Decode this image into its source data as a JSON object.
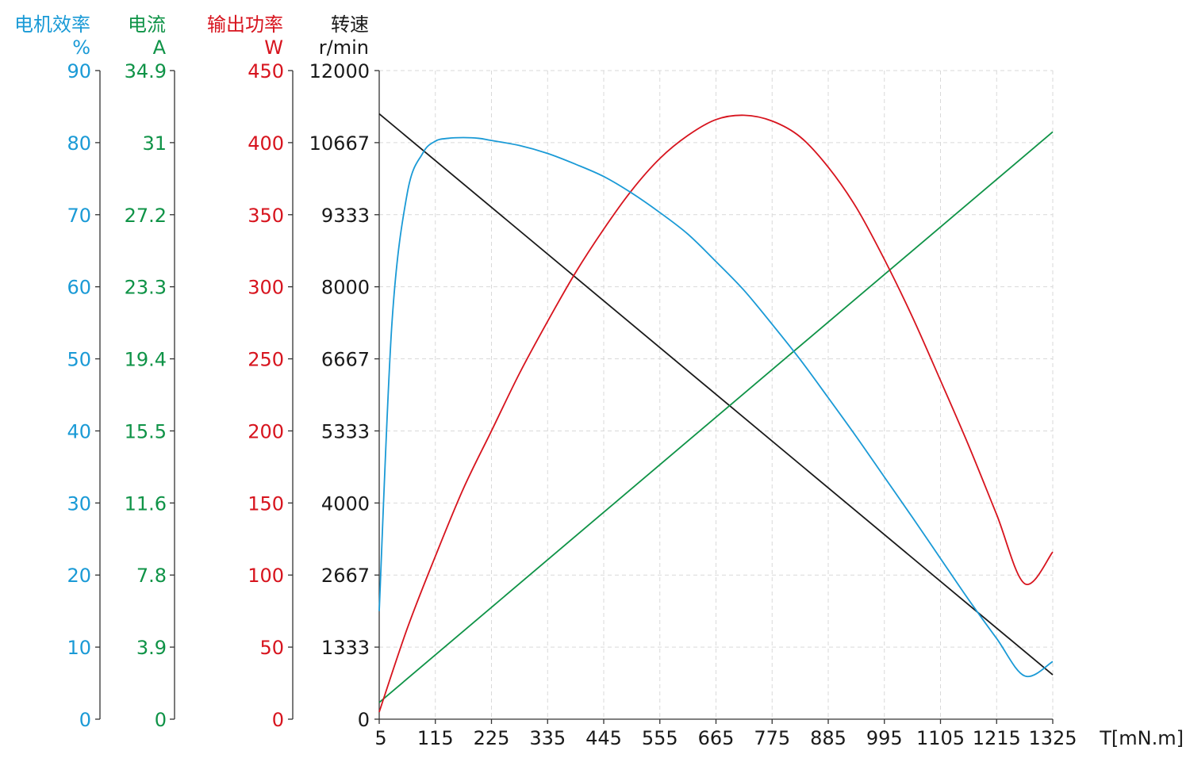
{
  "chart_data": {
    "type": "line",
    "xlabel": "T[mN.m]",
    "x_ticks": [
      "5",
      "115",
      "225",
      "335",
      "445",
      "555",
      "665",
      "775",
      "885",
      "995",
      "1105",
      "1215",
      "1325"
    ],
    "xlim": [
      5,
      1325
    ],
    "grid": true,
    "axes": [
      {
        "id": "efficiency",
        "title": "电机效率",
        "unit": "%",
        "color": "#1a9ad6",
        "ticks": [
          "0",
          "10",
          "20",
          "30",
          "40",
          "50",
          "60",
          "70",
          "80",
          "90"
        ],
        "ylim": [
          0,
          90
        ]
      },
      {
        "id": "current",
        "title": "电流",
        "unit": "A",
        "color": "#0f9347",
        "ticks": [
          "0",
          "3.9",
          "7.8",
          "11.6",
          "15.5",
          "19.4",
          "23.3",
          "27.2",
          "31",
          "34.9"
        ],
        "ylim": [
          0,
          34.9
        ]
      },
      {
        "id": "power",
        "title": "输出功率",
        "unit": "W",
        "color": "#d7141e",
        "ticks": [
          "0",
          "50",
          "100",
          "150",
          "200",
          "250",
          "300",
          "350",
          "400",
          "450"
        ],
        "ylim": [
          0,
          450
        ]
      },
      {
        "id": "speed",
        "title": "转速",
        "unit": "r/min",
        "color": "#1a1a1a",
        "ticks": [
          "0",
          "1333",
          "2667",
          "4000",
          "5333",
          "6667",
          "8000",
          "9333",
          "10667",
          "12000"
        ],
        "ylim": [
          0,
          12000
        ]
      }
    ],
    "series": [
      {
        "axis": "speed",
        "color": "#1a1a1a",
        "x": [
          5,
          1325
        ],
        "y": [
          11200,
          820
        ]
      },
      {
        "axis": "current",
        "color": "#0f9347",
        "x": [
          5,
          1325
        ],
        "y": [
          0.9,
          31.6
        ]
      },
      {
        "axis": "power",
        "color": "#d7141e",
        "x": [
          5,
          60,
          115,
          170,
          225,
          280,
          335,
          390,
          445,
          500,
          555,
          610,
          665,
          720,
          775,
          830,
          885,
          940,
          995,
          1050,
          1105,
          1160,
          1215,
          1270,
          1325
        ],
        "y": [
          5,
          63,
          113,
          160,
          200,
          240,
          276,
          310,
          340,
          367,
          389,
          405,
          416,
          419,
          415,
          404,
          383,
          355,
          319,
          279,
          235,
          190,
          142,
          94,
          116
        ]
      },
      {
        "axis": "efficiency",
        "color": "#1a9ad6",
        "x": [
          5,
          30,
          60,
          90,
          115,
          140,
          170,
          200,
          225,
          280,
          335,
          390,
          445,
          500,
          555,
          610,
          665,
          720,
          775,
          830,
          885,
          940,
          995,
          1050,
          1105,
          1160,
          1215,
          1270,
          1325
        ],
        "y": [
          15,
          55,
          73,
          78.5,
          80.2,
          80.6,
          80.7,
          80.6,
          80.3,
          79.6,
          78.5,
          77,
          75.3,
          73,
          70.3,
          67.3,
          63.5,
          59.5,
          54.8,
          49.9,
          44.6,
          39.2,
          33.6,
          28,
          22.3,
          16.6,
          11.2,
          6,
          8
        ]
      }
    ]
  }
}
